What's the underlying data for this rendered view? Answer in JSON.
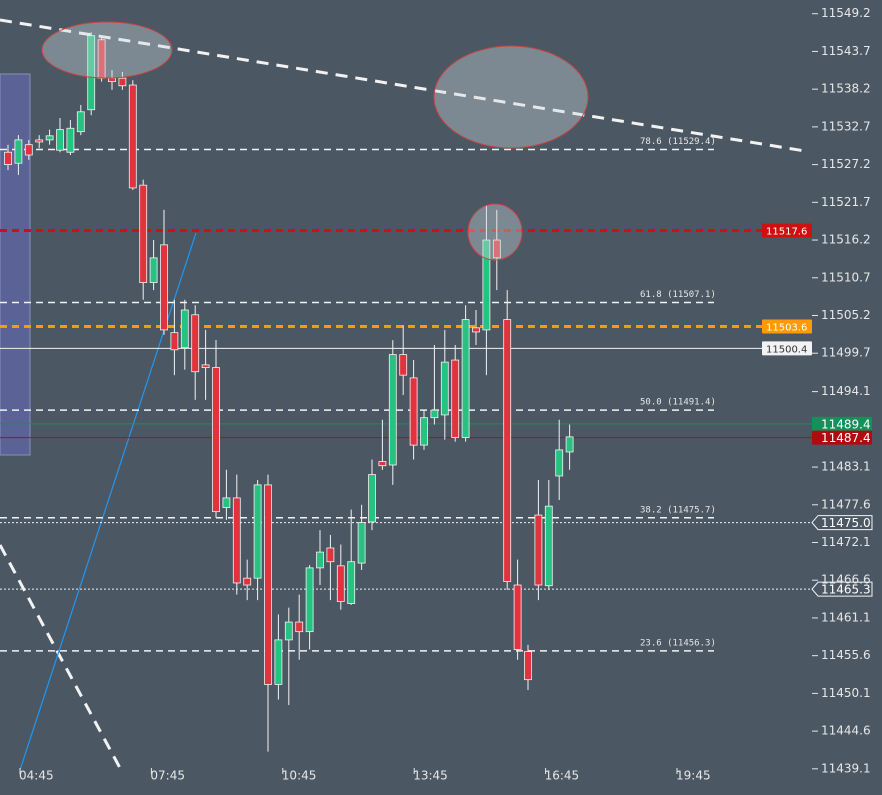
{
  "chart_data": {
    "type": "candlestick",
    "up_color": "#26c281",
    "down_color": "#e0333d",
    "ylim": [
      11438.2,
      11551.2
    ],
    "yticks": [
      11549.2,
      11543.7,
      11538.2,
      11532.7,
      11527.2,
      11521.7,
      11516.2,
      11510.7,
      11505.2,
      11499.7,
      11494.1,
      11483.1,
      11477.6,
      11472.1,
      11466.6,
      11461.1,
      11455.6,
      11450.1,
      11444.6,
      11439.1
    ],
    "xticks": [
      "04:45",
      "07:45",
      "10:45",
      "13:45",
      "16:45",
      "19:45"
    ],
    "open": [
      11529.0,
      11527.4,
      11530.1,
      11530.8,
      11530.8,
      11529.3,
      11529.0,
      11532.0,
      11535.2,
      11545.4,
      11539.8,
      11539.8,
      11538.8,
      11524.2,
      11510.0,
      11515.5,
      11502.7,
      11500.5,
      11505.3,
      11498.0,
      11497.6,
      11477.2,
      11478.6,
      11466.9,
      11466.9,
      11480.5,
      11451.4,
      11457.9,
      11460.5,
      11459.1,
      11468.4,
      11471.3,
      11468.7,
      11463.2,
      11469.1,
      11475.1,
      11483.9,
      11483.4,
      11499.5,
      11496.1,
      11486.3,
      11490.3,
      11490.7,
      11498.7,
      11487.4,
      11503.4,
      11503.1,
      11516.2,
      11504.6,
      11465.9,
      11456.2,
      11476.1,
      11465.8,
      11481.8,
      11485.3
    ],
    "high": [
      11530.1,
      11531.5,
      11530.8,
      11531.5,
      11532.3,
      11534.0,
      11533.7,
      11535.9,
      11546.5,
      11546.0,
      11541.0,
      11540.7,
      11539.5,
      11525.0,
      11516.2,
      11520.6,
      11507.5,
      11507.5,
      11506.7,
      11503.1,
      11501.6,
      11482.7,
      11482.0,
      11469.6,
      11481.2,
      11482.0,
      11461.6,
      11462.6,
      11464.5,
      11468.8,
      11473.9,
      11473.2,
      11471.8,
      11476.9,
      11477.6,
      11484.2,
      11490.0,
      11501.6,
      11503.8,
      11498.7,
      11491.4,
      11500.9,
      11503.1,
      11500.9,
      11506.7,
      11506.0,
      11521.3,
      11520.6,
      11508.9,
      11469.6,
      11457.2,
      11481.2,
      11481.2,
      11490.0,
      11489.3
    ],
    "low": [
      11526.4,
      11525.7,
      11527.9,
      11529.6,
      11530.1,
      11529.0,
      11528.6,
      11531.5,
      11534.4,
      11539.3,
      11538.1,
      11538.1,
      11523.5,
      11507.5,
      11508.9,
      11502.4,
      11496.5,
      11497.3,
      11492.9,
      11492.9,
      11475.7,
      11475.4,
      11464.5,
      11463.7,
      11463.7,
      11441.6,
      11449.2,
      11448.4,
      11455.0,
      11456.5,
      11465.9,
      11463.7,
      11462.3,
      11463.0,
      11468.1,
      11473.9,
      11482.7,
      11480.5,
      11493.6,
      11484.2,
      11485.6,
      11489.3,
      11487.1,
      11486.8,
      11486.8,
      11500.9,
      11496.5,
      11508.9,
      11465.2,
      11455.0,
      11450.6,
      11463.7,
      11465.2,
      11478.3,
      11482.7
    ],
    "close": [
      11527.2,
      11530.8,
      11528.6,
      11530.5,
      11531.4,
      11532.3,
      11532.5,
      11534.9,
      11546.0,
      11539.8,
      11539.3,
      11538.7,
      11523.8,
      11510.0,
      11513.6,
      11503.1,
      11500.2,
      11506.0,
      11497.0,
      11497.6,
      11476.6,
      11478.6,
      11466.2,
      11465.9,
      11480.5,
      11451.4,
      11457.9,
      11460.5,
      11459.1,
      11468.4,
      11470.7,
      11469.3,
      11463.5,
      11469.3,
      11475.0,
      11482.0,
      11483.3,
      11499.5,
      11496.5,
      11486.3,
      11490.3,
      11491.4,
      11498.4,
      11487.4,
      11504.6,
      11502.8,
      11516.2,
      11513.6,
      11466.4,
      11456.5,
      11452.1,
      11465.9,
      11477.4,
      11485.6,
      11487.5
    ],
    "levels": [
      {
        "value": 11529.4,
        "label": "78.6 (11529.4)"
      },
      {
        "value": 11507.1,
        "label": "61.8 (11507.1)"
      },
      {
        "value": 11491.4,
        "label": "50.0 (11491.4)"
      },
      {
        "value": 11475.7,
        "label": "38.2 (11475.7)"
      },
      {
        "value": 11456.3,
        "label": "23.6 (11456.3)"
      }
    ],
    "price_lines": [
      {
        "value": 11517.6,
        "color": "#d01010",
        "line_style": "dashed",
        "tag_style": "filled",
        "tag_position": "plot"
      },
      {
        "value": 11503.6,
        "color": "#ff9a00",
        "line_style": "dashed",
        "tag_style": "filled",
        "tag_position": "plot"
      },
      {
        "value": 11500.4,
        "color": "#f2f2f2",
        "line_style": "solid",
        "tag_style": "filled",
        "tag_position": "plot"
      },
      {
        "value": 11489.4,
        "color": "#14905a",
        "line_style": "solid",
        "tag_style": "filled",
        "tag_position": "axis"
      },
      {
        "value": 11487.4,
        "color": "#b00c10",
        "line_style": "solid",
        "tag_style": "filled",
        "tag_position": "axis"
      },
      {
        "value": 11475.0,
        "label": "11475.0",
        "color": "#f2f2f2",
        "line_style": "dotted",
        "tag_style": "outline",
        "tag_position": "axis"
      },
      {
        "value": 11465.3,
        "color": "#f2f2f2",
        "line_style": "dotted",
        "tag_style": "outline",
        "tag_position": "axis"
      }
    ]
  }
}
